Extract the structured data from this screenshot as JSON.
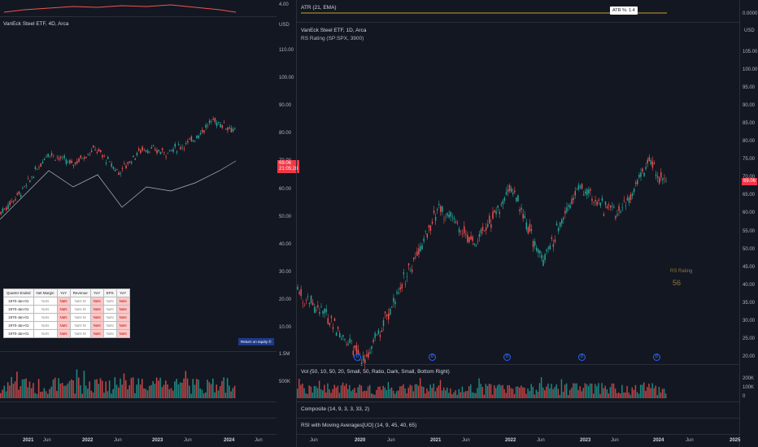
{
  "left_chart": {
    "title": "VanEck Steel ETF, 4D, Arca",
    "currency": "USD",
    "top_axis_value": "4.00",
    "price_ticks": [
      "110.00",
      "100.00",
      "90.00",
      "80.00",
      "70.00",
      "60.00",
      "50.00",
      "40.00",
      "30.00",
      "20.00",
      "10.00"
    ],
    "last_price": "69.06",
    "countdown": "21:05:28",
    "volume_ticks": [
      "1.5M",
      "500K"
    ],
    "x_labels": [
      "2021",
      "Jun",
      "2022",
      "Jun",
      "2023",
      "Jun",
      "2024",
      "Jun"
    ],
    "return_button": "Return on equity ©",
    "table": {
      "headers": [
        "Quarter Ended",
        "Net Margin",
        "YoY",
        "Revenue",
        "YoY",
        "EPS",
        "YoY"
      ],
      "rows": [
        [
          "1970-Jan-01",
          "NaN",
          "NaN",
          "NaN M",
          "NaN",
          "NaN",
          "NaN"
        ],
        [
          "1970-Jan-01",
          "NaN",
          "NaN",
          "NaN M",
          "NaN",
          "NaN",
          "NaN"
        ],
        [
          "1970-Jan-01",
          "NaN",
          "NaN",
          "NaN M",
          "NaN",
          "NaN",
          "NaN"
        ],
        [
          "1970-Jan-01",
          "NaN",
          "NaN",
          "NaN M",
          "NaN",
          "NaN",
          "NaN"
        ],
        [
          "1970-Jan-01",
          "NaN",
          "NaN",
          "NaN M",
          "NaN",
          "NaN",
          "NaN"
        ]
      ]
    }
  },
  "right_chart": {
    "atr_legend": "ATR (21, EMA)",
    "atr_tooltip": "ATR %: 1.4",
    "atr_value": "0.0000",
    "currency": "USD",
    "title": "VanEck Steel ETF, 1D, Arca",
    "rs_legend": "RS Rating (SP:SPX, 3900)",
    "price_ticks": [
      "105.00",
      "100.00",
      "95.00",
      "90.00",
      "85.00",
      "80.00",
      "75.00",
      "70.00",
      "65.00",
      "60.00",
      "55.00",
      "50.00",
      "45.00",
      "40.00",
      "35.00",
      "30.00",
      "25.00",
      "20.00"
    ],
    "last_price": "69.06",
    "rs_label": "RS Rating",
    "rs_value": "56",
    "dividend_marker": "D",
    "vol_legend": "Vol (50, 10, 50, 20, Small, 50, Ratio, Dark, Small, Bottom Right)",
    "vol_ticks": [
      "200K",
      "100K",
      "0"
    ],
    "composite_legend": "Composite (14, 9, 3, 3, 33, 2)",
    "rsi_legend": "RSI with Moving Averages[UO] (14, 9, 45, 40, 65)",
    "x_labels": [
      "Jun",
      "2020",
      "Jun",
      "2021",
      "Jun",
      "2022",
      "Jun",
      "2023",
      "Jun",
      "2024",
      "Jun",
      "2025"
    ]
  },
  "colors": {
    "background": "#131722",
    "up": "#26a69a",
    "down": "#ef5350",
    "accent": "#2962ff",
    "last_price": "#f23645",
    "atr_line": "#c9a227",
    "rs_text": "#8a7a3a"
  }
}
